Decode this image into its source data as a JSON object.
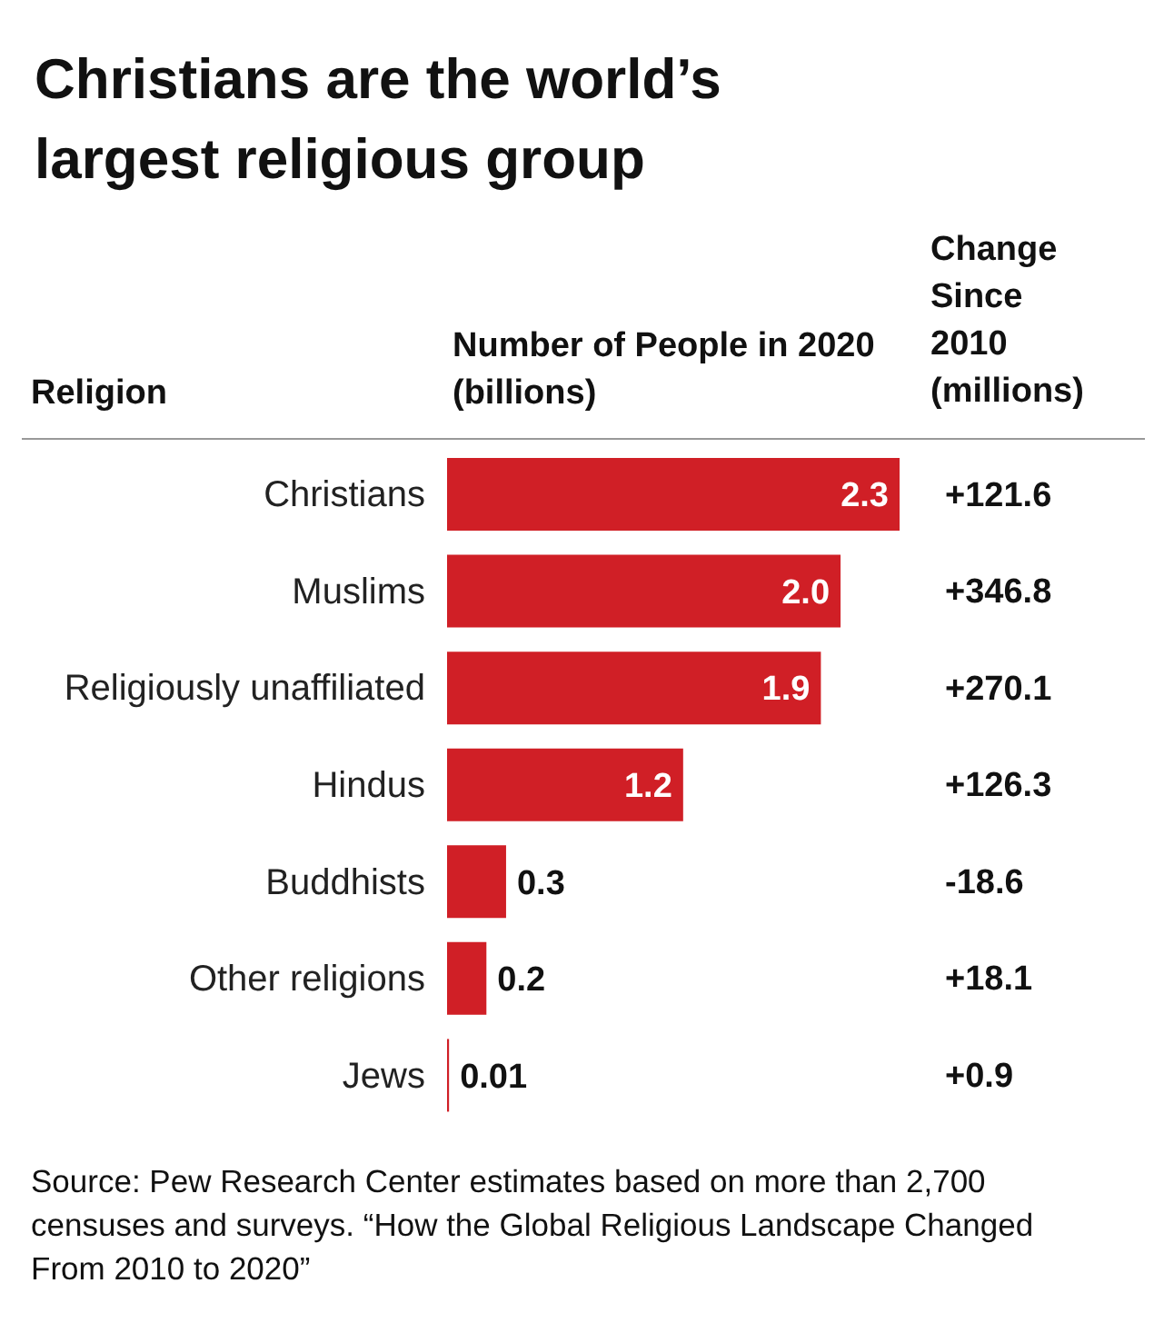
{
  "chart_data": {
    "type": "bar",
    "orientation": "horizontal",
    "title": "Christians are the world’s largest religious group",
    "xlabel": "Number of People in 2020 (billions)",
    "ylabel": "Religion",
    "y2label": "Change Since 2010 (millions)",
    "categories": [
      "Christians",
      "Muslims",
      "Religiously unaffiliated",
      "Hindus",
      "Buddhists",
      "Other religions",
      "Jews"
    ],
    "values": [
      2.3,
      2.0,
      1.9,
      1.2,
      0.3,
      0.2,
      0.01
    ],
    "value_labels": [
      "2.3",
      "2.0",
      "1.9",
      "1.2",
      "0.3",
      "0.2",
      "0.01"
    ],
    "color": "#d01f26",
    "annotations": [
      "+121.6",
      "+346.8",
      "+270.1",
      "+126.3",
      "-18.6",
      "+18.1",
      "+0.9",
      "Source: Pew Research Center estimates based on more than 2,700 censuses and surveys. “How the Global Religious Landscape Changed From 2010 to 2020”"
    ]
  }
}
